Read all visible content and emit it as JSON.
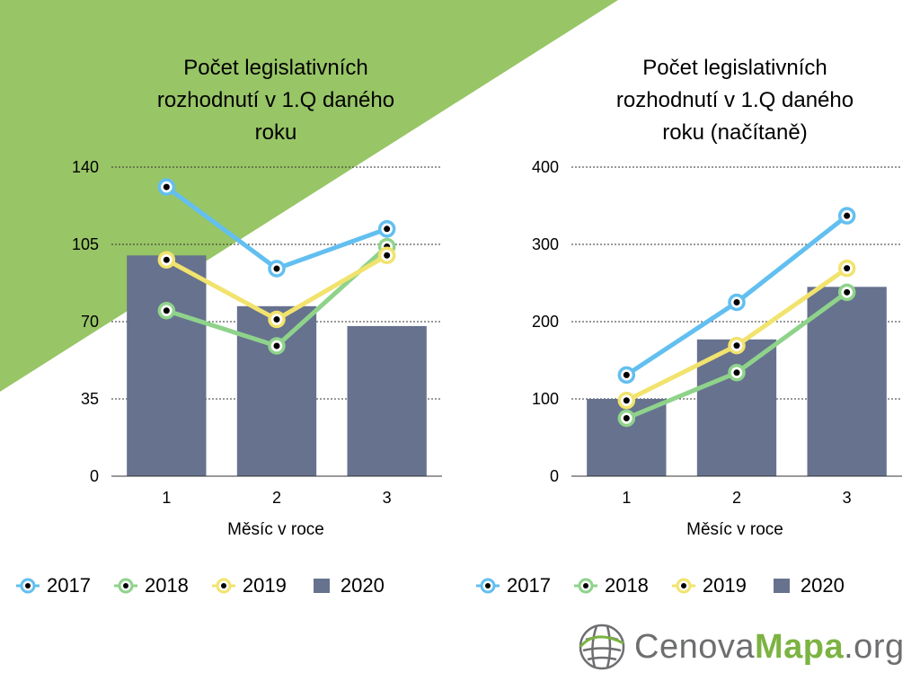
{
  "colors": {
    "background_triangle": "#98c566",
    "bar": "#66728e",
    "s2017": "#62bff0",
    "s2018": "#8fd38b",
    "s2019": "#f1e36d",
    "dot": "#000000"
  },
  "chart_data": [
    {
      "type": "bar+line",
      "title": "Počet legislativních rozhodnutí v 1.Q daného roku",
      "title_lines": [
        "Počet legislativních",
        "rozhodnutí v 1.Q daného",
        "roku"
      ],
      "xlabel": "Měsíc v roce",
      "ylabel": "",
      "categories": [
        "1",
        "2",
        "3"
      ],
      "ylim": [
        0,
        140
      ],
      "yticks": [
        0,
        35,
        70,
        105,
        140
      ],
      "grid": true,
      "legend": "bottom",
      "series": [
        {
          "name": "2017",
          "kind": "line",
          "color": "#62bff0",
          "values": [
            131,
            94,
            112
          ]
        },
        {
          "name": "2018",
          "kind": "line",
          "color": "#8fd38b",
          "values": [
            75,
            59,
            104
          ]
        },
        {
          "name": "2019",
          "kind": "line",
          "color": "#f1e36d",
          "values": [
            98,
            71,
            100
          ]
        },
        {
          "name": "2020",
          "kind": "bar",
          "color": "#66728e",
          "values": [
            100,
            77,
            68
          ]
        }
      ]
    },
    {
      "type": "bar+line",
      "title": "Počet legislativních rozhodnutí v 1.Q daného roku (načítaně)",
      "title_lines": [
        "Počet legislativních",
        "rozhodnutí v 1.Q daného",
        "roku (načítaně)"
      ],
      "xlabel": "Měsíc v roce",
      "ylabel": "",
      "categories": [
        "1",
        "2",
        "3"
      ],
      "ylim": [
        0,
        400
      ],
      "yticks": [
        0,
        100,
        200,
        300,
        400
      ],
      "grid": true,
      "legend": "bottom",
      "series": [
        {
          "name": "2017",
          "kind": "line",
          "color": "#62bff0",
          "values": [
            131,
            225,
            337
          ]
        },
        {
          "name": "2018",
          "kind": "line",
          "color": "#8fd38b",
          "values": [
            75,
            134,
            238
          ]
        },
        {
          "name": "2019",
          "kind": "line",
          "color": "#f1e36d",
          "values": [
            98,
            169,
            269
          ]
        },
        {
          "name": "2020",
          "kind": "bar",
          "color": "#66728e",
          "values": [
            100,
            177,
            245
          ]
        }
      ]
    }
  ],
  "legend_items": [
    {
      "name": "2017",
      "kind": "line",
      "color": "#62bff0"
    },
    {
      "name": "2018",
      "kind": "line",
      "color": "#8fd38b"
    },
    {
      "name": "2019",
      "kind": "line",
      "color": "#f1e36d"
    },
    {
      "name": "2020",
      "kind": "bar",
      "color": "#66728e"
    }
  ],
  "logo": {
    "icon": "globe-grid-icon",
    "part1": "Cenova",
    "part2": "Mapa",
    "part3": ".org"
  }
}
